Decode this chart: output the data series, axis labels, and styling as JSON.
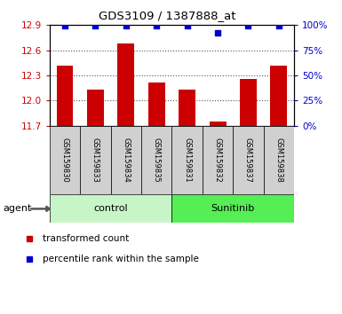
{
  "title": "GDS3109 / 1387888_at",
  "samples": [
    "GSM159830",
    "GSM159833",
    "GSM159834",
    "GSM159835",
    "GSM159831",
    "GSM159832",
    "GSM159837",
    "GSM159838"
  ],
  "bar_values": [
    12.42,
    12.13,
    12.68,
    12.22,
    12.13,
    11.75,
    12.26,
    12.42
  ],
  "percentile_values": [
    99,
    99,
    99,
    99,
    99,
    92,
    99,
    99
  ],
  "groups": [
    {
      "label": "control",
      "indices": [
        0,
        1,
        2,
        3
      ],
      "color": "#c8f5c8"
    },
    {
      "label": "Sunitinib",
      "indices": [
        4,
        5,
        6,
        7
      ],
      "color": "#55ee55"
    }
  ],
  "bar_color": "#cc0000",
  "dot_color": "#0000cc",
  "ylim": [
    11.7,
    12.9
  ],
  "yticks_left": [
    11.7,
    12.0,
    12.3,
    12.6,
    12.9
  ],
  "yticks_right": [
    0,
    25,
    50,
    75,
    100
  ],
  "ylabel_left_color": "#cc0000",
  "ylabel_right_color": "#0000cc",
  "grid_color": "#555555",
  "background_color": "#ffffff",
  "sample_area_color": "#d0d0d0",
  "agent_label": "agent",
  "legend_items": [
    {
      "label": "transformed count",
      "color": "#cc0000"
    },
    {
      "label": "percentile rank within the sample",
      "color": "#0000cc"
    }
  ]
}
